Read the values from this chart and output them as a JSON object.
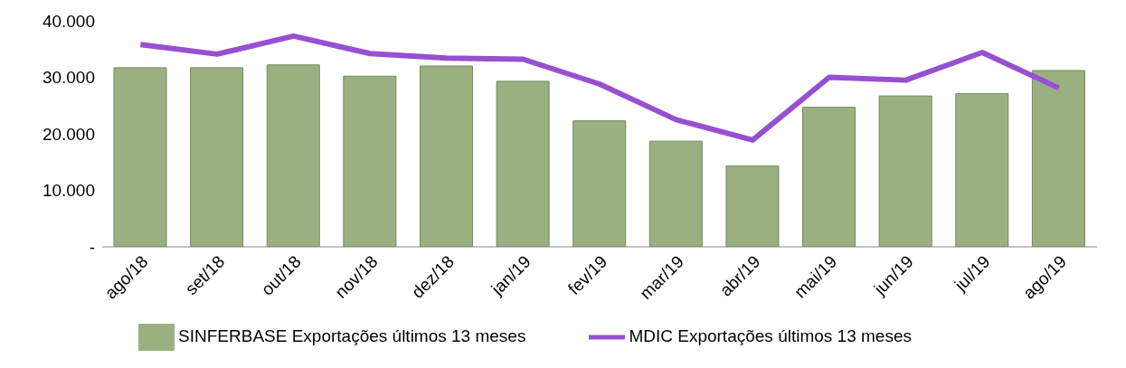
{
  "chart_data": {
    "type": "bar",
    "categories": [
      "ago/18",
      "set/18",
      "out/18",
      "nov/18",
      "dez/18",
      "jan/19",
      "fev/19",
      "mar/19",
      "abr/19",
      "mai/19",
      "jun/19",
      "jul/19",
      "ago/19"
    ],
    "series": [
      {
        "name": "SINFERBASE Exportações últimos 13 meses",
        "color": "#9bb080",
        "values": [
          31700,
          31700,
          32200,
          30200,
          32000,
          29300,
          22300,
          18700,
          14300,
          24700,
          26700,
          27100,
          31200
        ]
      },
      {
        "name": "MDIC Exportações últimos 13 meses",
        "type": "line",
        "color": "#9650d0",
        "values": [
          35800,
          34100,
          37300,
          34200,
          33400,
          33200,
          28800,
          22500,
          18900,
          30000,
          29500,
          34400,
          28100
        ]
      }
    ],
    "ylim": [
      0,
      40000
    ],
    "yticks": [
      {
        "value": 0,
        "label": "-"
      },
      {
        "value": 10000,
        "label": "10.000"
      },
      {
        "value": 20000,
        "label": "20.000"
      },
      {
        "value": 30000,
        "label": "30.000"
      },
      {
        "value": 40000,
        "label": "40.000"
      }
    ],
    "grid": false,
    "legend": "bottom",
    "marker": "none",
    "line_style": "solid"
  }
}
